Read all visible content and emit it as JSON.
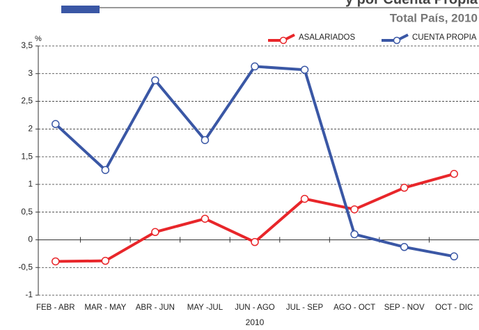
{
  "chart_data": {
    "type": "line",
    "title": "y por Cuenta Propia",
    "subtitle": "Total País, 2010",
    "y_label": "%",
    "x_label": "2010",
    "categories": [
      "FEB - ABR",
      "MAR - MAY",
      "ABR - JUN",
      "MAY -JUL",
      "JUN - AGO",
      "JUL - SEP",
      "AGO - OCT",
      "SEP - NOV",
      "OCT - DIC"
    ],
    "series": [
      {
        "name": "ASALARIADOS",
        "color": "#e8262a",
        "values": [
          -0.39,
          -0.38,
          0.14,
          0.38,
          -0.04,
          0.74,
          0.55,
          0.94,
          1.19
        ]
      },
      {
        "name": "CUENTA PROPIA",
        "color": "#3a57a5",
        "values": [
          2.09,
          1.26,
          2.88,
          1.8,
          3.13,
          3.07,
          0.1,
          -0.13,
          -0.3
        ]
      }
    ],
    "ylim": [
      -1,
      3.5
    ],
    "yticks": [
      -1,
      {
        "value": -0.5,
        "label": "-0,5"
      },
      0,
      {
        "value": 0.5,
        "label": "0,5"
      },
      1,
      {
        "value": 1.5,
        "label": "1,5"
      },
      2,
      {
        "value": 2.5,
        "label": "2,5"
      },
      3,
      {
        "value": 3.5,
        "label": "3,5"
      }
    ],
    "grid": true,
    "legend": "top-right"
  }
}
